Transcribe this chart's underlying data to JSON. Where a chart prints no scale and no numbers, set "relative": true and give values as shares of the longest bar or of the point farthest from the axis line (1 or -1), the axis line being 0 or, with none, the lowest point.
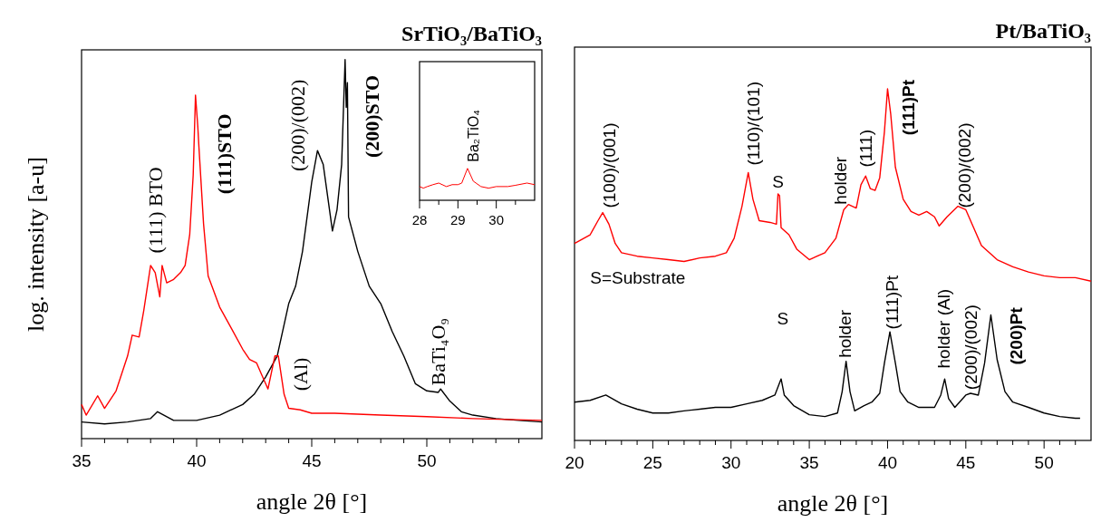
{
  "chart_data": [
    {
      "type": "line",
      "title": "SrTiO₃/BaTiO₃",
      "xlabel": "angle 2θ [°]",
      "ylabel": "log. intensity [a-u]",
      "relative": true,
      "xlim": [
        35,
        55
      ],
      "xticks": [
        35,
        {
          "value": 36,
          "label": null
        },
        {
          "value": 37,
          "label": null
        },
        {
          "value": 38,
          "label": null
        },
        {
          "value": 39,
          "label": null
        },
        40,
        {
          "value": 41,
          "label": null
        },
        {
          "value": 42,
          "label": null
        },
        {
          "value": 43,
          "label": null
        },
        {
          "value": 44,
          "label": null
        },
        45,
        {
          "value": 46,
          "label": null
        },
        {
          "value": 47,
          "label": null
        },
        {
          "value": 48,
          "label": null
        },
        {
          "value": 49,
          "label": null
        },
        50,
        {
          "value": 51,
          "label": null
        },
        {
          "value": 52,
          "label": null
        },
        {
          "value": 53,
          "label": null
        },
        {
          "value": 54,
          "label": null
        }
      ],
      "series": [
        {
          "color": "#000000",
          "x": [
            35,
            36,
            37,
            38,
            38.3,
            39,
            40,
            41,
            42,
            42.5,
            43,
            43.5,
            44,
            44.3,
            44.6,
            45,
            45.25,
            45.5,
            45.9,
            46.1,
            46.3,
            46.45,
            46.5,
            46.55,
            46.6,
            47,
            47.5,
            48,
            48.5,
            49,
            49.5,
            50,
            50.5,
            50.6,
            51,
            51.5,
            52,
            53,
            54,
            55
          ],
          "values": [
            0.044,
            0.039,
            0.044,
            0.053,
            0.071,
            0.048,
            0.048,
            0.062,
            0.09,
            0.117,
            0.163,
            0.218,
            0.356,
            0.402,
            0.494,
            0.677,
            0.76,
            0.723,
            0.548,
            0.604,
            0.723,
            1,
            0.874,
            0.939,
            0.585,
            0.494,
            0.402,
            0.356,
            0.282,
            0.218,
            0.145,
            0.126,
            0.122,
            0.131,
            0.099,
            0.071,
            0.062,
            0.053,
            0.048,
            0.044
          ]
        },
        {
          "color": "#ff0000",
          "x": [
            35,
            35.2,
            35.7,
            36,
            36.5,
            37,
            37.2,
            37.5,
            37.7,
            38,
            38.2,
            38.4,
            38.5,
            38.7,
            39,
            39.3,
            39.5,
            39.7,
            39.85,
            39.95,
            40.05,
            40.1,
            40.3,
            40.5,
            41,
            41.5,
            42,
            42.3,
            42.6,
            42.8,
            43.1,
            43.4,
            43.55,
            43.8,
            44,
            44.5,
            45,
            46,
            48,
            50,
            52,
            55
          ],
          "values": [
            0.09,
            0.062,
            0.113,
            0.08,
            0.126,
            0.218,
            0.273,
            0.268,
            0.337,
            0.457,
            0.438,
            0.374,
            0.457,
            0.411,
            0.42,
            0.438,
            0.457,
            0.539,
            0.695,
            0.906,
            0.824,
            0.769,
            0.567,
            0.429,
            0.347,
            0.292,
            0.236,
            0.209,
            0.2,
            0.172,
            0.131,
            0.218,
            0.218,
            0.117,
            0.08,
            0.076,
            0.067,
            0.067,
            0.062,
            0.058,
            0.053,
            0.048
          ]
        }
      ],
      "annotations": [
        "(111)  BTO",
        "(111)STO",
        "(200)/(002)",
        "(200)STO",
        "(Al)",
        "BaTi₄O₉"
      ]
    },
    {
      "type": "line",
      "relative": true,
      "xlim": [
        28,
        31
      ],
      "xticks": [
        28,
        {
          "value": 28.5,
          "label": null
        },
        29,
        {
          "value": 29.5,
          "label": null
        },
        30,
        {
          "value": 30.5,
          "label": null
        }
      ],
      "series": [
        {
          "color": "#ff0000",
          "x": [
            28,
            28.1,
            28.2,
            28.35,
            28.5,
            28.7,
            28.85,
            29,
            29.1,
            29.25,
            29.4,
            29.6,
            29.8,
            30,
            30.3,
            30.5,
            30.8,
            31
          ],
          "values": [
            0.43,
            0.38,
            0.43,
            0.49,
            0.54,
            0.43,
            0.49,
            0.49,
            0.54,
            1,
            0.6,
            0.43,
            0.38,
            0.43,
            0.43,
            0.47,
            0.54,
            0.49
          ]
        }
      ],
      "annotations": [
        "Ba₂TiO₄"
      ]
    },
    {
      "type": "line",
      "title": "Pt/BaTiO₃",
      "xlabel": "angle 2θ [°]",
      "relative": true,
      "xlim": [
        20,
        53
      ],
      "xticks": [
        20,
        {
          "value": 21,
          "label": null
        },
        {
          "value": 22,
          "label": null
        },
        {
          "value": 23,
          "label": null
        },
        {
          "value": 24,
          "label": null
        },
        25,
        {
          "value": 26,
          "label": null
        },
        {
          "value": 27,
          "label": null
        },
        {
          "value": 28,
          "label": null
        },
        {
          "value": 29,
          "label": null
        },
        30,
        {
          "value": 31,
          "label": null
        },
        {
          "value": 32,
          "label": null
        },
        {
          "value": 33,
          "label": null
        },
        {
          "value": 34,
          "label": null
        },
        35,
        {
          "value": 36,
          "label": null
        },
        {
          "value": 37,
          "label": null
        },
        {
          "value": 38,
          "label": null
        },
        {
          "value": 39,
          "label": null
        },
        40,
        {
          "value": 41,
          "label": null
        },
        {
          "value": 42,
          "label": null
        },
        {
          "value": 43,
          "label": null
        },
        {
          "value": 44,
          "label": null
        },
        45,
        {
          "value": 46,
          "label": null
        },
        {
          "value": 47,
          "label": null
        },
        {
          "value": 48,
          "label": null
        },
        {
          "value": 49,
          "label": null
        },
        50,
        {
          "value": 51,
          "label": null
        },
        {
          "value": 52,
          "label": null
        }
      ],
      "series": [
        {
          "color": "#ff0000",
          "x": [
            20,
            21,
            21.5,
            21.8,
            22.2,
            22.6,
            23,
            24,
            25,
            26,
            27,
            28,
            29,
            29.7,
            30.2,
            30.7,
            31.1,
            31.4,
            31.8,
            32.5,
            32.9,
            33,
            33.1,
            33.2,
            33.7,
            34.2,
            35,
            35.5,
            36,
            36.7,
            37.2,
            37.5,
            38,
            38.3,
            38.6,
            38.9,
            39.2,
            39.5,
            39.8,
            40,
            40.2,
            40.5,
            41,
            41.5,
            42,
            42.5,
            43,
            43.3,
            43.8,
            44.5,
            45,
            45.5,
            46,
            47,
            48,
            49,
            50,
            51,
            52,
            53
          ],
          "values": [
            0.56,
            0.585,
            0.625,
            0.648,
            0.615,
            0.56,
            0.534,
            0.524,
            0.519,
            0.514,
            0.509,
            0.519,
            0.524,
            0.534,
            0.575,
            0.666,
            0.762,
            0.686,
            0.625,
            0.62,
            0.615,
            0.701,
            0.696,
            0.605,
            0.585,
            0.544,
            0.514,
            0.524,
            0.534,
            0.575,
            0.656,
            0.671,
            0.661,
            0.727,
            0.752,
            0.716,
            0.711,
            0.747,
            0.878,
            1,
            0.929,
            0.777,
            0.686,
            0.651,
            0.641,
            0.651,
            0.636,
            0.61,
            0.636,
            0.666,
            0.656,
            0.605,
            0.554,
            0.514,
            0.494,
            0.479,
            0.468,
            0.463,
            0.463,
            0.453
          ]
        },
        {
          "color": "#000000",
          "x": [
            20,
            21,
            22,
            23,
            24,
            25,
            26,
            27,
            28,
            29,
            30,
            31,
            32,
            32.8,
            33.2,
            33.4,
            34,
            35,
            36,
            36.8,
            37.1,
            37.35,
            37.6,
            37.9,
            38.5,
            39,
            39.5,
            39.8,
            40.15,
            40.5,
            40.8,
            41.3,
            42,
            43,
            43.4,
            43.65,
            43.9,
            44.3,
            45,
            45.3,
            45.8,
            46.2,
            46.6,
            47,
            47.5,
            48,
            49,
            50,
            51,
            52,
            52.3
          ],
          "values": [
            0.109,
            0.114,
            0.129,
            0.104,
            0.089,
            0.078,
            0.078,
            0.084,
            0.089,
            0.094,
            0.094,
            0.104,
            0.114,
            0.129,
            0.175,
            0.129,
            0.099,
            0.073,
            0.068,
            0.078,
            0.139,
            0.225,
            0.139,
            0.084,
            0.099,
            0.109,
            0.134,
            0.22,
            0.309,
            0.22,
            0.139,
            0.109,
            0.094,
            0.094,
            0.129,
            0.175,
            0.119,
            0.094,
            0.129,
            0.134,
            0.129,
            0.22,
            0.357,
            0.23,
            0.139,
            0.109,
            0.094,
            0.078,
            0.068,
            0.063,
            0.063
          ]
        }
      ],
      "annotations": [
        "(100)/(001)",
        "(110)/(101)",
        "S",
        "holder",
        "(111)",
        "(111)Pt",
        "(200)/(002)",
        "S=Substrate",
        "S",
        "holder",
        "(111)Pt",
        "holder (Al)",
        "(200)/(002)",
        "(200)Pt"
      ]
    }
  ]
}
